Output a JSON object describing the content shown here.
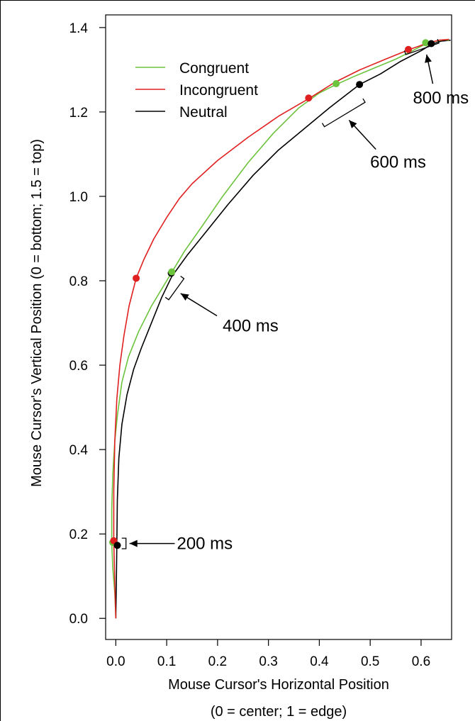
{
  "chart_data": {
    "type": "line",
    "xlabel": "Mouse Cursor's Horizontal Position",
    "xlabel_line2": "(0 = center; 1 = edge)",
    "ylabel": "Mouse Cursor's Vertical Position (0 = bottom; 1.5 = top)",
    "xlim": [
      -0.02,
      0.66
    ],
    "ylim": [
      -0.05,
      1.43
    ],
    "x_ticks": [
      0.0,
      0.1,
      0.2,
      0.3,
      0.4,
      0.5,
      0.6
    ],
    "x_tick_labels": [
      "0.0",
      "0.1",
      "0.2",
      "0.3",
      "0.4",
      "0.5",
      "0.6"
    ],
    "y_ticks": [
      0.0,
      0.2,
      0.4,
      0.6,
      0.8,
      1.0,
      1.2,
      1.4
    ],
    "y_tick_labels": [
      "0.0",
      "0.2",
      "0.4",
      "0.6",
      "0.8",
      "1.0",
      "1.2",
      "1.4"
    ],
    "grid": false,
    "legend_position": "top-left",
    "series": [
      {
        "name": "Congruent",
        "color": "#6cc33c",
        "x": [
          0.0,
          -0.002,
          -0.006,
          -0.008,
          -0.008,
          -0.006,
          -0.002,
          0.003,
          0.012,
          0.025,
          0.045,
          0.07,
          0.095,
          0.11,
          0.135,
          0.17,
          0.21,
          0.26,
          0.31,
          0.36,
          0.4,
          0.433,
          0.47,
          0.51,
          0.55,
          0.58,
          0.61,
          0.63,
          0.645,
          0.655
        ],
        "y": [
          0.0,
          0.06,
          0.12,
          0.18,
          0.26,
          0.34,
          0.42,
          0.48,
          0.56,
          0.62,
          0.68,
          0.74,
          0.79,
          0.82,
          0.87,
          0.93,
          1.0,
          1.08,
          1.15,
          1.21,
          1.245,
          1.265,
          1.285,
          1.305,
          1.325,
          1.343,
          1.362,
          1.368,
          1.371,
          1.37
        ]
      },
      {
        "name": "Incongruent",
        "color": "#e02020",
        "x": [
          0.0,
          -0.002,
          -0.004,
          -0.004,
          -0.002,
          0.002,
          0.008,
          0.016,
          0.026,
          0.04,
          0.055,
          0.075,
          0.1,
          0.125,
          0.15,
          0.2,
          0.26,
          0.32,
          0.38,
          0.43,
          0.48,
          0.53,
          0.575,
          0.61,
          0.635,
          0.655
        ],
        "y": [
          0.0,
          0.08,
          0.184,
          0.3,
          0.42,
          0.52,
          0.6,
          0.67,
          0.74,
          0.806,
          0.85,
          0.9,
          0.95,
          0.995,
          1.03,
          1.085,
          1.14,
          1.19,
          1.232,
          1.27,
          1.3,
          1.325,
          1.347,
          1.362,
          1.37,
          1.372
        ]
      },
      {
        "name": "Neutral",
        "color": "#000000",
        "x": [
          0.0,
          0.001,
          0.002,
          0.003,
          0.006,
          0.012,
          0.022,
          0.035,
          0.05,
          0.07,
          0.09,
          0.11,
          0.14,
          0.18,
          0.22,
          0.27,
          0.32,
          0.37,
          0.42,
          0.479,
          0.52,
          0.56,
          0.6,
          0.62,
          0.64,
          0.658
        ],
        "y": [
          0.0,
          0.08,
          0.173,
          0.28,
          0.38,
          0.46,
          0.53,
          0.59,
          0.64,
          0.7,
          0.76,
          0.81,
          0.86,
          0.92,
          0.98,
          1.05,
          1.11,
          1.16,
          1.21,
          1.265,
          1.29,
          1.32,
          1.345,
          1.36,
          1.368,
          1.37
        ]
      }
    ],
    "markers": [
      {
        "series": "Congruent",
        "x": -0.006,
        "y": 0.18,
        "color": "#6cc33c"
      },
      {
        "series": "Incongruent",
        "x": -0.004,
        "y": 0.184,
        "color": "#e02020"
      },
      {
        "series": "Neutral",
        "x": 0.003,
        "y": 0.173,
        "color": "#000000"
      },
      {
        "series": "Incongruent",
        "x": 0.04,
        "y": 0.806,
        "color": "#e02020"
      },
      {
        "series": "Neutral",
        "x": 0.109,
        "y": 0.818,
        "color": "#000000"
      },
      {
        "series": "Congruent",
        "x": 0.11,
        "y": 0.821,
        "color": "#6cc33c"
      },
      {
        "series": "Incongruent",
        "x": 0.379,
        "y": 1.233,
        "color": "#e02020"
      },
      {
        "series": "Congruent",
        "x": 0.433,
        "y": 1.267,
        "color": "#6cc33c"
      },
      {
        "series": "Neutral",
        "x": 0.479,
        "y": 1.265,
        "color": "#000000"
      },
      {
        "series": "Incongruent",
        "x": 0.575,
        "y": 1.348,
        "color": "#e02020"
      },
      {
        "series": "Congruent",
        "x": 0.609,
        "y": 1.364,
        "color": "#6cc33c"
      },
      {
        "series": "Neutral",
        "x": 0.62,
        "y": 1.362,
        "color": "#000000"
      }
    ],
    "annotations": [
      {
        "text": "200 ms",
        "bracket_x": [
          0.02,
          0.02
        ],
        "bracket_y": [
          0.19,
          0.165
        ],
        "label_x": 0.12,
        "label_y": 0.175
      },
      {
        "text": "400 ms",
        "bracket_x": [
          0.104,
          0.134
        ],
        "bracket_y": [
          0.755,
          0.805
        ],
        "label_x": 0.21,
        "label_y": 0.7
      },
      {
        "text": "600 ms",
        "bracket_x": [
          0.41,
          0.49
        ],
        "bracket_y": [
          1.165,
          1.223
        ],
        "label_x": 0.5,
        "label_y": 1.088
      },
      {
        "text": "800 ms",
        "bracket_x": [
          0.57,
          0.635
        ],
        "bracket_y": [
          1.336,
          1.363
        ],
        "label_x": 0.584,
        "label_y": 1.24
      }
    ]
  }
}
